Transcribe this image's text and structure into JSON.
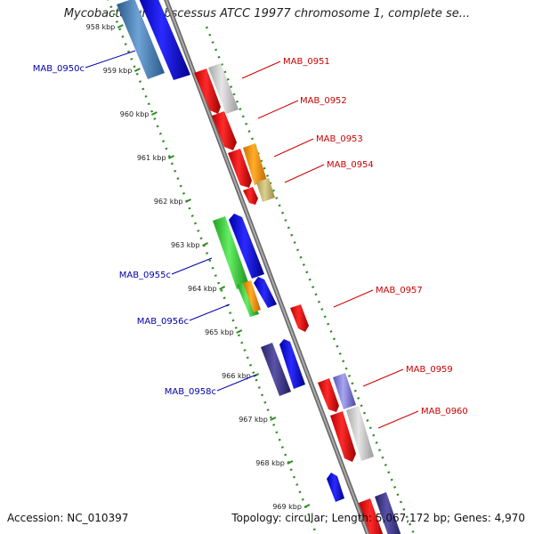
{
  "title": "Mycobacterium abscessus ATCC 19977 chromosome 1, complete se...",
  "footer": {
    "accession": "Accession: NC_010397",
    "topology": "Topology: circular; Length: 5,067,172 bp; Genes: 4,970"
  },
  "colors": {
    "backbone": "#888888",
    "ruler": "#2e8b22",
    "label_forward": "#cc0000",
    "label_reverse": "#0000aa"
  },
  "ruler_kbp": [
    958,
    959,
    960,
    961,
    962,
    963,
    964,
    965,
    966,
    967,
    968,
    969
  ],
  "ruler_labels": [
    "958 kbp",
    "959 kbp",
    "960 kbp",
    "961 kbp",
    "962 kbp",
    "963 kbp",
    "964 kbp",
    "965 kbp",
    "966 kbp",
    "967 kbp",
    "968 kbp",
    "969 kbp"
  ],
  "gene_labels": [
    {
      "text": "MAB_0950c",
      "strand": "reverse"
    },
    {
      "text": "MAB_0951",
      "strand": "forward"
    },
    {
      "text": "MAB_0952",
      "strand": "forward"
    },
    {
      "text": "MAB_0953",
      "strand": "forward"
    },
    {
      "text": "MAB_0954",
      "strand": "forward"
    },
    {
      "text": "MAB_0955c",
      "strand": "reverse"
    },
    {
      "text": "MAB_0956c",
      "strand": "reverse"
    },
    {
      "text": "MAB_0957",
      "strand": "forward"
    },
    {
      "text": "MAB_0958c",
      "strand": "reverse"
    },
    {
      "text": "MAB_0959",
      "strand": "forward"
    },
    {
      "text": "MAB_0960",
      "strand": "forward"
    }
  ]
}
